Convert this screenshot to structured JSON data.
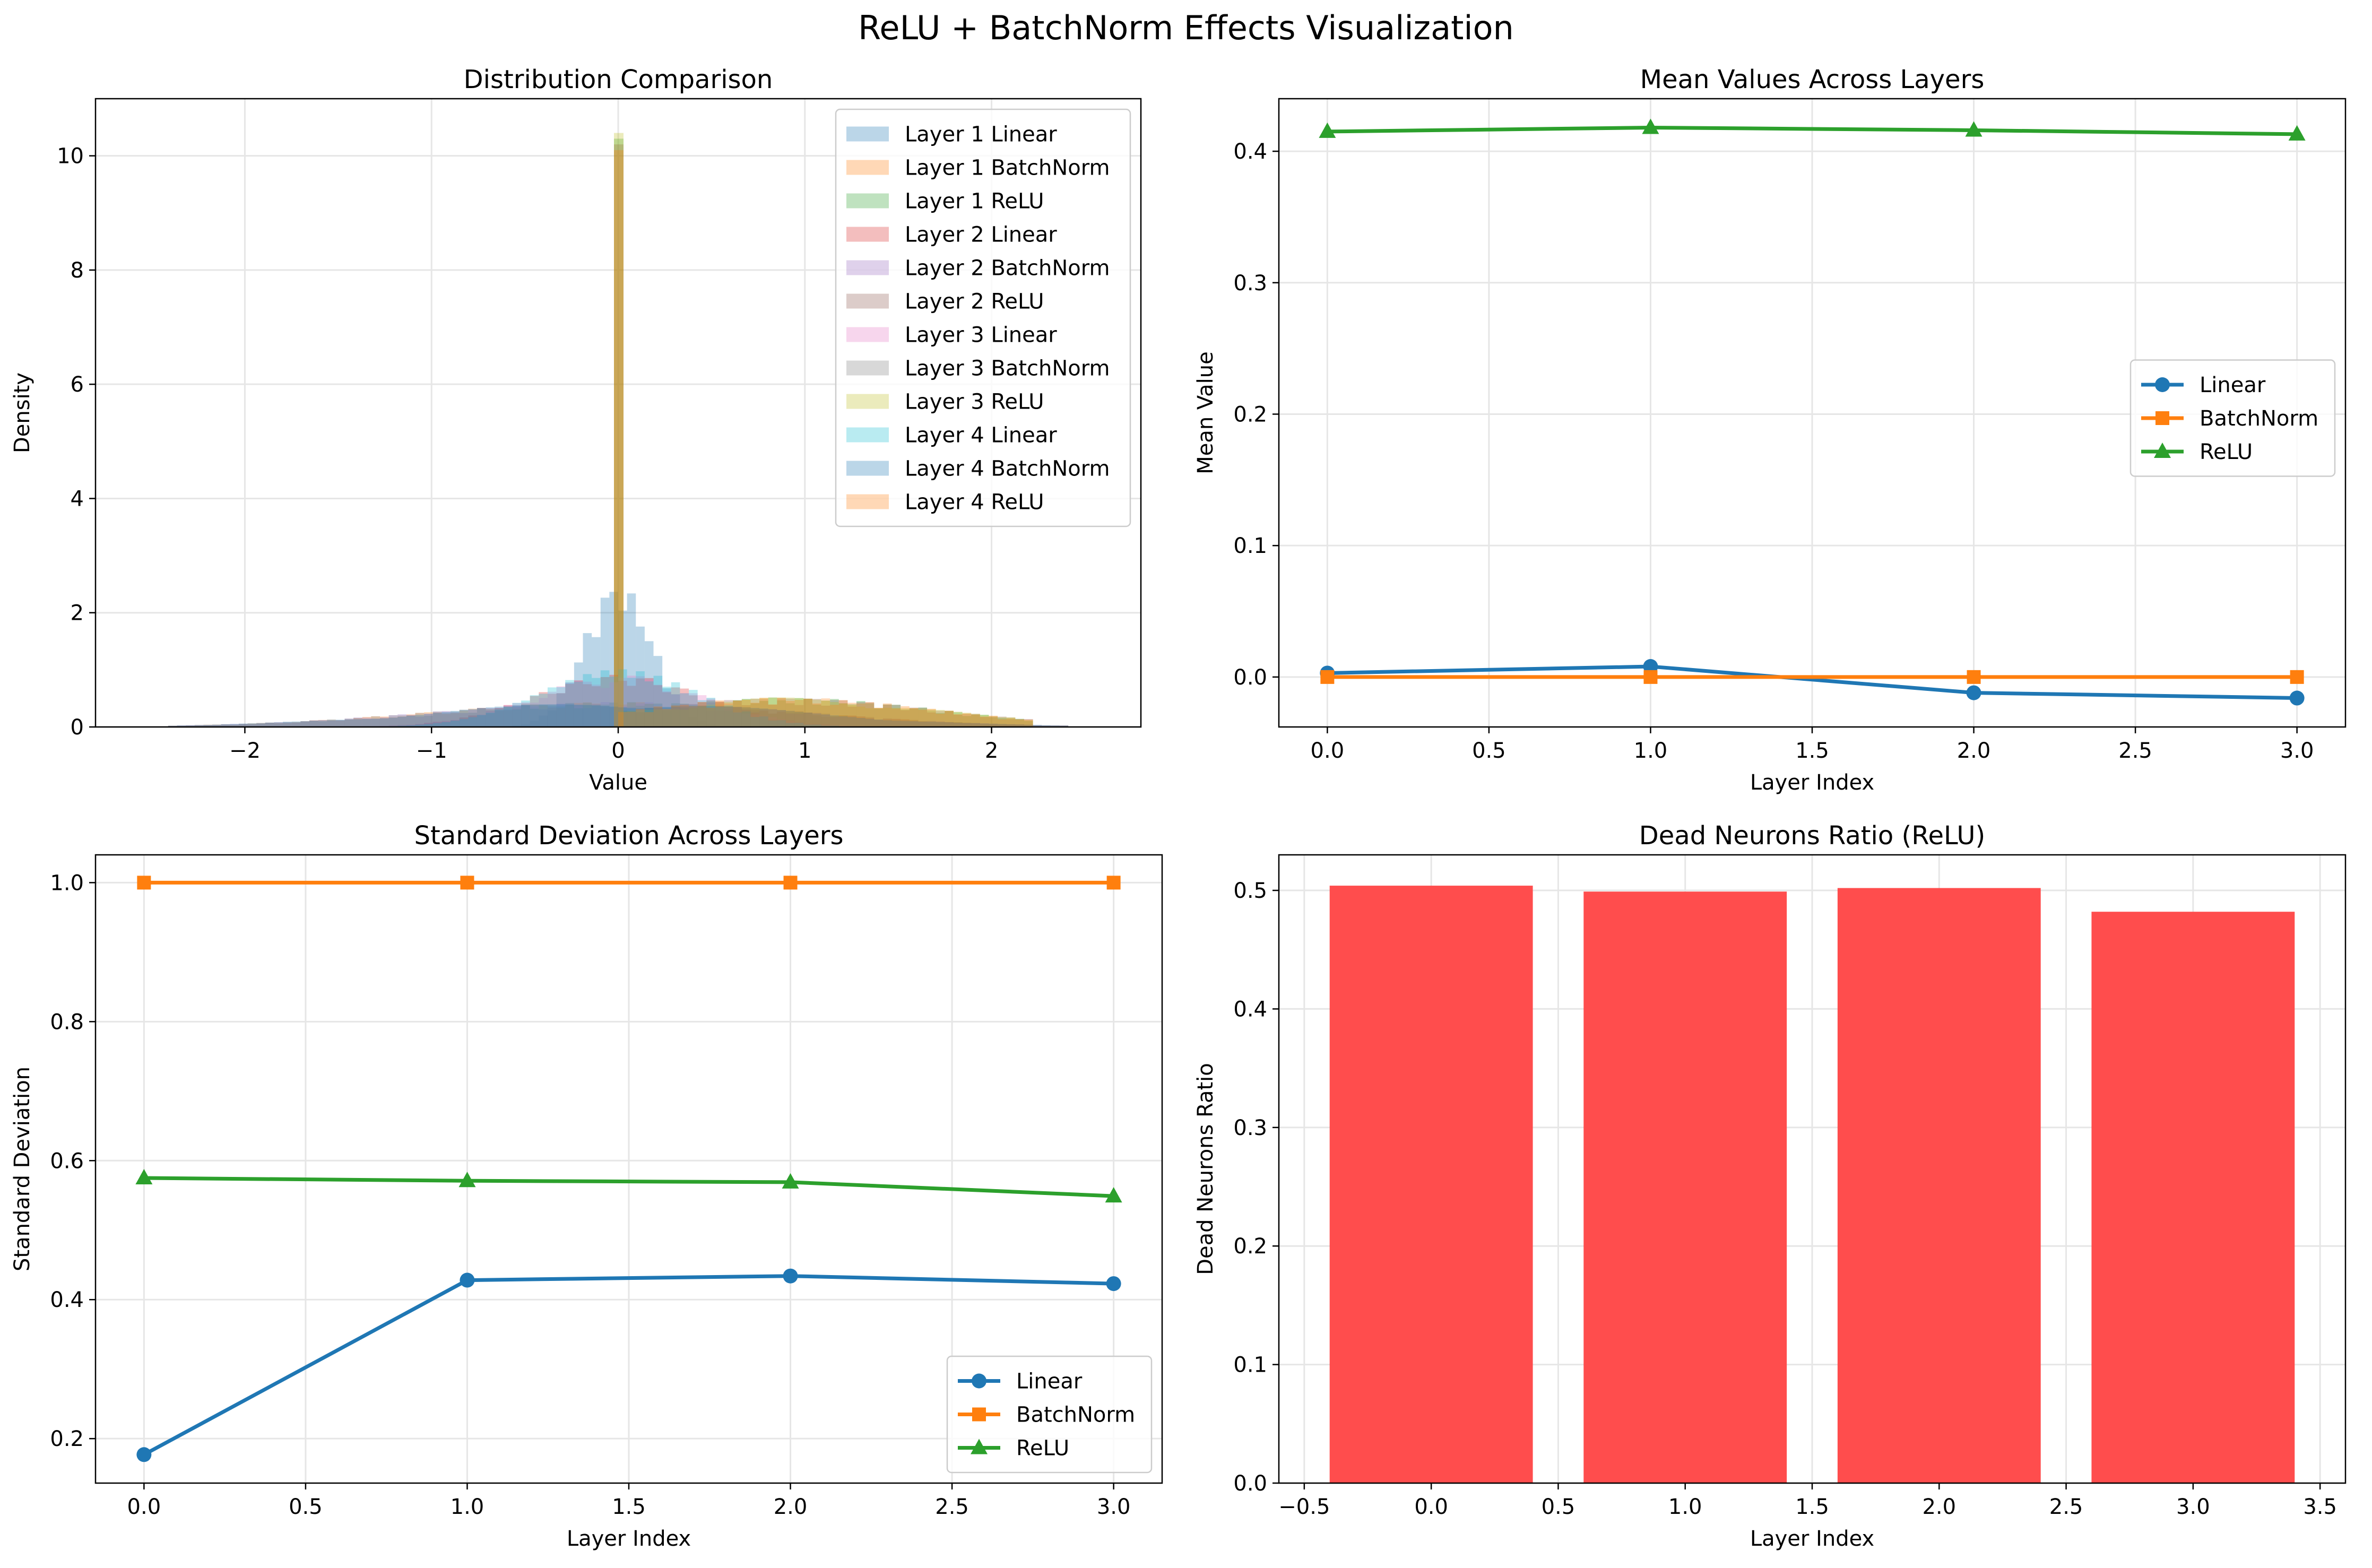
{
  "figure": {
    "suptitle": "ReLU + BatchNorm Effects Visualization"
  },
  "colors": {
    "c0": "#1f77b4",
    "c1": "#ff7f0e",
    "c2": "#2ca02c",
    "c3": "#d62728",
    "c4": "#9467bd",
    "c5": "#8c564b",
    "c6": "#e377c2",
    "c7": "#7f7f7f",
    "c8": "#bcbd22",
    "c9": "#17becf",
    "bar": "#ff4d4d",
    "grid": "#e6e6e6"
  },
  "chart_data": [
    {
      "type": "histogram",
      "title": "Distribution Comparison",
      "xlabel": "Value",
      "ylabel": "Density",
      "xlim": [
        -2.8,
        2.8
      ],
      "ylim": [
        0,
        11
      ],
      "xticks": [
        -2,
        -1,
        0,
        1,
        2
      ],
      "xtick_labels": [
        "−2",
        "−1",
        "0",
        "1",
        "2"
      ],
      "yticks": [
        0,
        2,
        4,
        6,
        8,
        10
      ],
      "ytick_labels": [
        "0",
        "2",
        "4",
        "6",
        "8",
        "10"
      ],
      "grid": true,
      "legend_position": "top-right",
      "series": [
        {
          "name": "Layer 1 Linear",
          "color": "#1f77b4",
          "shape": "narrow",
          "center": 0.0,
          "width": 0.18,
          "peak": 2.2,
          "spike": 0,
          "range": [
            -1.0,
            1.0
          ]
        },
        {
          "name": "Layer 1 BatchNorm",
          "color": "#ff7f0e",
          "shape": "wide",
          "center": 0.0,
          "width": 1.0,
          "peak": 0.38,
          "spike": 0,
          "range": [
            -2.4,
            2.4
          ]
        },
        {
          "name": "Layer 1 ReLU",
          "color": "#2ca02c",
          "shape": "relu",
          "center": 0.0,
          "width": 0.8,
          "peak": 0.45,
          "spike": 10.3,
          "range": [
            0,
            2.2
          ]
        },
        {
          "name": "Layer 2 Linear",
          "color": "#d62728",
          "shape": "wide",
          "center": 0.0,
          "width": 0.45,
          "peak": 0.8,
          "spike": 0,
          "range": [
            -1.6,
            1.6
          ]
        },
        {
          "name": "Layer 2 BatchNorm",
          "color": "#9467bd",
          "shape": "wide",
          "center": 0.0,
          "width": 1.0,
          "peak": 0.38,
          "spike": 0,
          "range": [
            -2.4,
            2.4
          ]
        },
        {
          "name": "Layer 2 ReLU",
          "color": "#8c564b",
          "shape": "relu",
          "center": 0.0,
          "width": 0.8,
          "peak": 0.45,
          "spike": 10.2,
          "range": [
            0,
            2.2
          ]
        },
        {
          "name": "Layer 3 Linear",
          "color": "#e377c2",
          "shape": "wide",
          "center": 0.0,
          "width": 0.45,
          "peak": 0.8,
          "spike": 0,
          "range": [
            -1.6,
            1.6
          ]
        },
        {
          "name": "Layer 3 BatchNorm",
          "color": "#7f7f7f",
          "shape": "wide",
          "center": 0.0,
          "width": 1.0,
          "peak": 0.38,
          "spike": 0,
          "range": [
            -2.4,
            2.4
          ]
        },
        {
          "name": "Layer 3 ReLU",
          "color": "#bcbd22",
          "shape": "relu",
          "center": 0.0,
          "width": 0.8,
          "peak": 0.45,
          "spike": 10.4,
          "range": [
            0,
            2.2
          ]
        },
        {
          "name": "Layer 4 Linear",
          "color": "#17becf",
          "shape": "wide",
          "center": 0.0,
          "width": 0.42,
          "peak": 0.9,
          "spike": 0,
          "range": [
            -1.6,
            1.6
          ]
        },
        {
          "name": "Layer 4 BatchNorm",
          "color": "#1f77b4",
          "shape": "wide",
          "center": 0.0,
          "width": 1.0,
          "peak": 0.38,
          "spike": 0,
          "range": [
            -2.4,
            2.4
          ]
        },
        {
          "name": "Layer 4 ReLU",
          "color": "#ff7f0e",
          "shape": "relu",
          "center": 0.0,
          "width": 0.8,
          "peak": 0.45,
          "spike": 10.1,
          "range": [
            0,
            2.2
          ]
        }
      ]
    },
    {
      "type": "line",
      "title": "Mean Values Across Layers",
      "xlabel": "Layer Index",
      "ylabel": "Mean Value",
      "xlim": [
        -0.15,
        3.15
      ],
      "ylim": [
        -0.038,
        0.44
      ],
      "xticks": [
        0,
        0.5,
        1,
        1.5,
        2,
        2.5,
        3
      ],
      "xtick_labels": [
        "0.0",
        "0.5",
        "1.0",
        "1.5",
        "2.0",
        "2.5",
        "3.0"
      ],
      "yticks": [
        0,
        0.1,
        0.2,
        0.3,
        0.4
      ],
      "ytick_labels": [
        "0.0",
        "0.1",
        "0.2",
        "0.3",
        "0.4"
      ],
      "grid": true,
      "legend_position": "center-right",
      "x": [
        0,
        1,
        2,
        3
      ],
      "series": [
        {
          "name": "Linear",
          "color": "#1f77b4",
          "marker": "circle",
          "values": [
            0.003,
            0.008,
            -0.012,
            -0.016
          ]
        },
        {
          "name": "BatchNorm",
          "color": "#ff7f0e",
          "marker": "square",
          "values": [
            0.0,
            0.0,
            0.0,
            0.0
          ]
        },
        {
          "name": "ReLU",
          "color": "#2ca02c",
          "marker": "triangle",
          "values": [
            0.415,
            0.418,
            0.416,
            0.413
          ]
        }
      ]
    },
    {
      "type": "line",
      "title": "Standard Deviation Across Layers",
      "xlabel": "Layer Index",
      "ylabel": "Standard Deviation",
      "xlim": [
        -0.15,
        3.15
      ],
      "ylim": [
        0.136,
        1.04
      ],
      "xticks": [
        0,
        0.5,
        1,
        1.5,
        2,
        2.5,
        3
      ],
      "xtick_labels": [
        "0.0",
        "0.5",
        "1.0",
        "1.5",
        "2.0",
        "2.5",
        "3.0"
      ],
      "yticks": [
        0.2,
        0.4,
        0.6,
        0.8,
        1.0
      ],
      "ytick_labels": [
        "0.2",
        "0.4",
        "0.6",
        "0.8",
        "1.0"
      ],
      "grid": true,
      "legend_position": "bottom-right",
      "x": [
        0,
        1,
        2,
        3
      ],
      "series": [
        {
          "name": "Linear",
          "color": "#1f77b4",
          "marker": "circle",
          "values": [
            0.177,
            0.428,
            0.434,
            0.423
          ]
        },
        {
          "name": "BatchNorm",
          "color": "#ff7f0e",
          "marker": "square",
          "values": [
            1.0,
            1.0,
            1.0,
            1.0
          ]
        },
        {
          "name": "ReLU",
          "color": "#2ca02c",
          "marker": "triangle",
          "values": [
            0.575,
            0.571,
            0.569,
            0.549
          ]
        }
      ]
    },
    {
      "type": "bar",
      "title": "Dead Neurons Ratio (ReLU)",
      "xlabel": "Layer Index",
      "ylabel": "Dead Neurons Ratio",
      "xlim": [
        -0.6,
        3.6
      ],
      "ylim": [
        0,
        0.53
      ],
      "xticks": [
        -0.5,
        0,
        0.5,
        1,
        1.5,
        2,
        2.5,
        3,
        3.5
      ],
      "xtick_labels": [
        "−0.5",
        "0.0",
        "0.5",
        "1.0",
        "1.5",
        "2.0",
        "2.5",
        "3.0",
        "3.5"
      ],
      "yticks": [
        0,
        0.1,
        0.2,
        0.3,
        0.4,
        0.5
      ],
      "ytick_labels": [
        "0.0",
        "0.1",
        "0.2",
        "0.3",
        "0.4",
        "0.5"
      ],
      "grid": true,
      "categories": [
        0,
        1,
        2,
        3
      ],
      "values": [
        0.504,
        0.499,
        0.502,
        0.482
      ],
      "bar_width": 0.8,
      "color": "#ff4d4d"
    }
  ]
}
